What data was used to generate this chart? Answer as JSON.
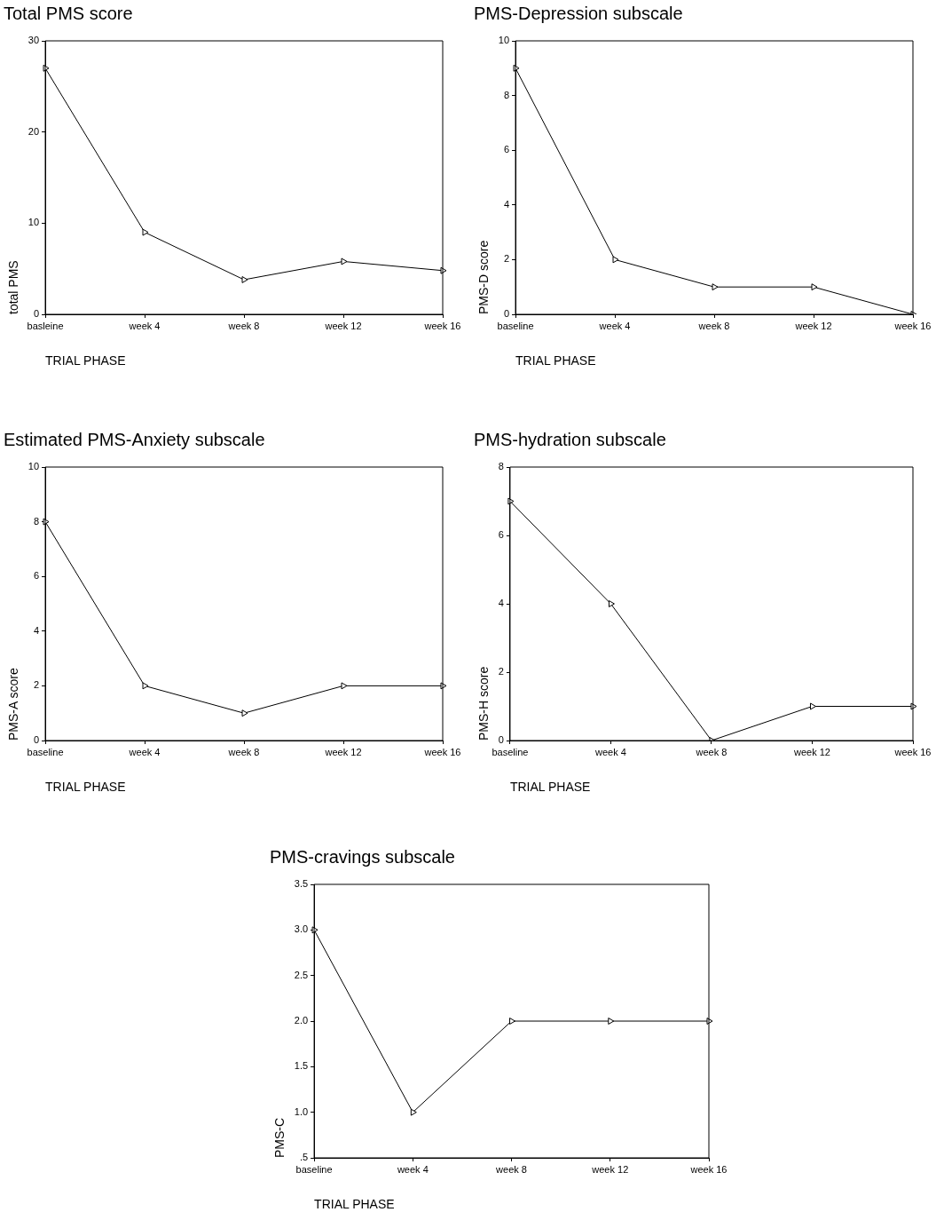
{
  "chart_data": [
    {
      "type": "line",
      "title": "Total PMS score",
      "xlabel": "TRIAL PHASE",
      "ylabel": "total PMS",
      "categories": [
        "basleine",
        "week 4",
        "week 8",
        "week 12",
        "week 16"
      ],
      "series": [
        {
          "color": "#000000",
          "values": [
            27,
            9,
            3.8,
            5.8,
            4.8
          ]
        }
      ],
      "ylim": [
        0,
        30
      ],
      "yticks": [
        0,
        10,
        20,
        30
      ],
      "grid": false,
      "legend": false,
      "marker": "triangle",
      "line_style": "solid"
    },
    {
      "type": "line",
      "title": "PMS-Depression subscale",
      "xlabel": "TRIAL PHASE",
      "ylabel": "PMS-D score",
      "categories": [
        "baseline",
        "week 4",
        "week 8",
        "week 12",
        "week 16"
      ],
      "series": [
        {
          "color": "#000000",
          "values": [
            9,
            2,
            1,
            1,
            0
          ]
        }
      ],
      "ylim": [
        0,
        10
      ],
      "yticks": [
        0,
        2,
        4,
        6,
        8,
        10
      ],
      "grid": false,
      "legend": false,
      "marker": "triangle",
      "line_style": "solid"
    },
    {
      "type": "line",
      "title": "Estimated PMS-Anxiety subscale",
      "xlabel": "TRIAL PHASE",
      "ylabel": "PMS-A score",
      "categories": [
        "baseline",
        "week 4",
        "week 8",
        "week 12",
        "week 16"
      ],
      "series": [
        {
          "color": "#000000",
          "values": [
            8,
            2,
            1,
            2,
            2
          ]
        }
      ],
      "ylim": [
        0,
        10
      ],
      "yticks": [
        0,
        2,
        4,
        6,
        8,
        10
      ],
      "grid": false,
      "legend": false,
      "marker": "triangle",
      "line_style": "solid"
    },
    {
      "type": "line",
      "title": "PMS-hydration subscale",
      "xlabel": "TRIAL PHASE",
      "ylabel": "PMS-H score",
      "categories": [
        "baseline",
        "week 4",
        "week 8",
        "week 12",
        "week 16"
      ],
      "series": [
        {
          "color": "#000000",
          "values": [
            7,
            4,
            0,
            1,
            1
          ]
        }
      ],
      "ylim": [
        0,
        8
      ],
      "yticks": [
        0,
        2,
        4,
        6,
        8
      ],
      "grid": false,
      "legend": false,
      "marker": "triangle",
      "line_style": "solid"
    },
    {
      "type": "line",
      "title": "PMS-cravings subscale",
      "xlabel": "TRIAL PHASE",
      "ylabel": "PMS-C",
      "categories": [
        "baseline",
        "week 4",
        "week 8",
        "week 12",
        "week 16"
      ],
      "series": [
        {
          "color": "#000000",
          "values": [
            3,
            1,
            2,
            2,
            2
          ]
        }
      ],
      "ylim": [
        0.5,
        3.5
      ],
      "yticks": [
        {
          "value": 0.5,
          "label": ".5"
        },
        {
          "value": 1,
          "label": "1.0"
        },
        {
          "value": 1.5,
          "label": "1.5"
        },
        {
          "value": 2,
          "label": "2.0"
        },
        {
          "value": 2.5,
          "label": "2.5"
        },
        {
          "value": 3,
          "label": "3.0"
        },
        {
          "value": 3.5,
          "label": "3.5"
        }
      ],
      "grid": false,
      "legend": false,
      "marker": "triangle",
      "line_style": "solid"
    }
  ]
}
